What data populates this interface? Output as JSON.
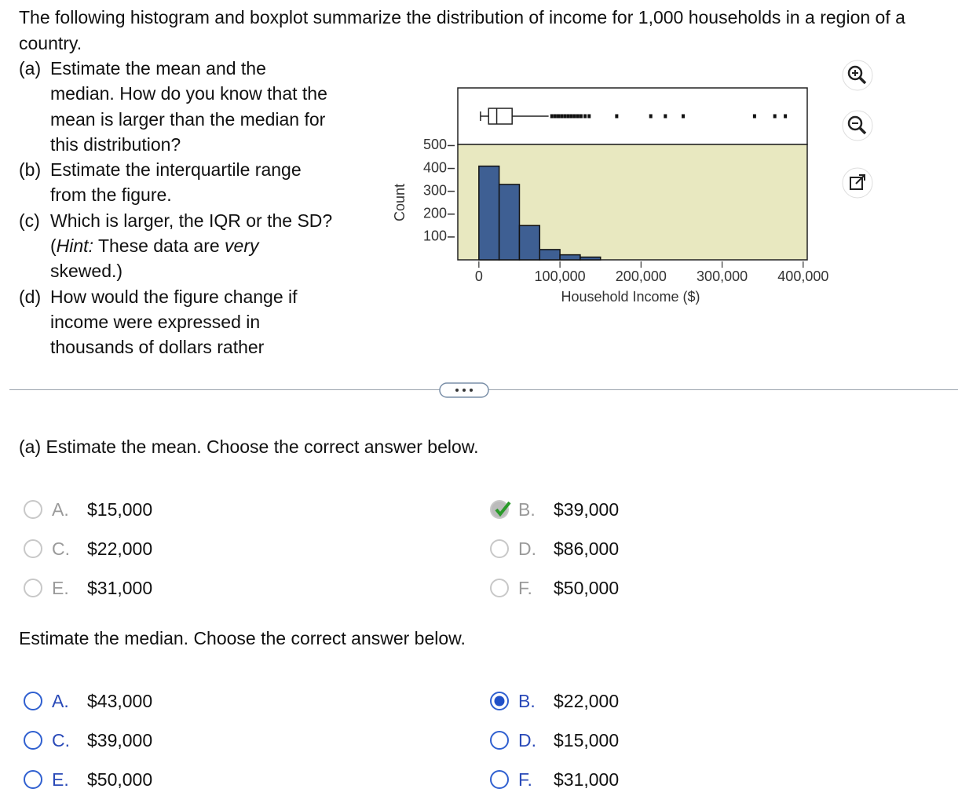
{
  "question": {
    "intro": "The following histogram and boxplot summarize the distribution of income for 1,000 households in a region of a country.",
    "parts": [
      {
        "letter": "(a)",
        "runs": [
          "Estimate the mean and the median. How do you know that the mean is larger than the median for this distribution?"
        ]
      },
      {
        "letter": "(b)",
        "runs": [
          "Estimate the interquartile range from the figure."
        ]
      },
      {
        "letter": "(c)",
        "runs": [
          "Which is larger, the IQR or the SD? (",
          "Hint:",
          " These data are ",
          "very",
          " skewed.)"
        ]
      },
      {
        "letter": "(d)",
        "runs": [
          "How would the figure change if income were expressed in thousands of dollars rather"
        ]
      }
    ]
  },
  "chart_data": {
    "type": "histogram",
    "xlabel": "Household Income ($)",
    "ylabel": "Count",
    "bins": [
      0,
      25000,
      50000,
      75000,
      100000,
      125000,
      150000
    ],
    "counts": [
      410,
      330,
      150,
      45,
      22,
      12
    ],
    "color": "#3e5f93",
    "background": "#e8e8c0",
    "xlim": [
      -26000,
      405000
    ],
    "ylim": [
      0,
      505
    ],
    "xticks": [
      0,
      {
        "value": 100000,
        "label": "100,000"
      },
      {
        "value": 200000,
        "label": "200,000"
      },
      {
        "value": 300000,
        "label": "300,000"
      },
      {
        "value": 400000,
        "label": "400,000"
      }
    ],
    "yticks": [
      100,
      200,
      300,
      400,
      500
    ],
    "boxplot": {
      "whislo": 2000,
      "q1": 12000,
      "med": 22000,
      "q3": 41000,
      "whishi": 86000,
      "fliers": [
        90000,
        94000,
        98000,
        102000,
        106000,
        110000,
        114000,
        118000,
        122000,
        126000,
        131000,
        136000,
        170000,
        212000,
        230000,
        252000,
        340000,
        365000,
        378000
      ]
    }
  },
  "answers": [
    {
      "prompt": "(a) Estimate the mean. Choose the correct answer below.",
      "selected": "B",
      "answered": true,
      "options": [
        {
          "letter": "A.",
          "text": "$15,000"
        },
        {
          "letter": "B.",
          "text": "$39,000"
        },
        {
          "letter": "C.",
          "text": "$22,000"
        },
        {
          "letter": "D.",
          "text": "$86,000"
        },
        {
          "letter": "E.",
          "text": "$31,000"
        },
        {
          "letter": "F.",
          "text": "$50,000"
        }
      ]
    },
    {
      "prompt": "Estimate the median. Choose the correct answer below.",
      "selected": "B",
      "answered": false,
      "options": [
        {
          "letter": "A.",
          "text": "$43,000"
        },
        {
          "letter": "B.",
          "text": "$22,000"
        },
        {
          "letter": "C.",
          "text": "$39,000"
        },
        {
          "letter": "D.",
          "text": "$15,000"
        },
        {
          "letter": "E.",
          "text": "$50,000"
        },
        {
          "letter": "F.",
          "text": "$31,000"
        }
      ]
    }
  ]
}
